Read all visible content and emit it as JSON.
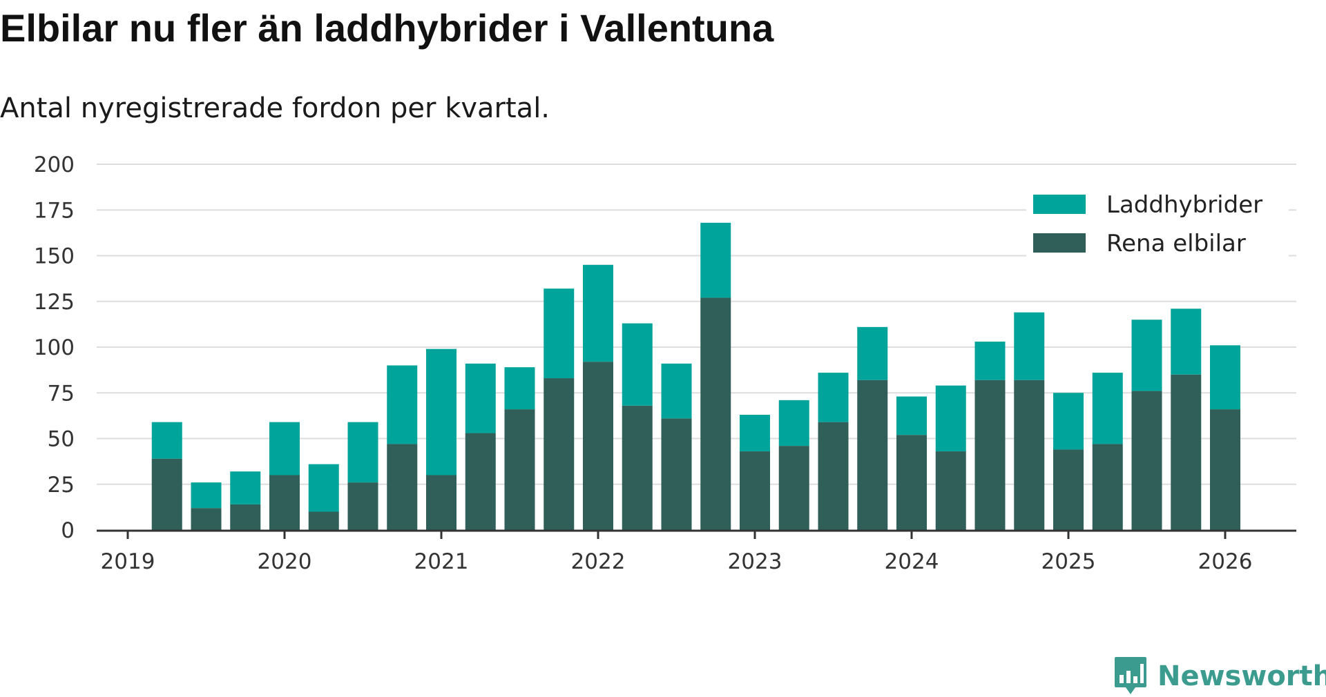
{
  "header": {
    "title": "Elbilar nu fler än laddhybrider i Vallentuna",
    "subtitle": "Antal nyregistrerade fordon per kvartal."
  },
  "colors": {
    "laddhybrider": "#00a49a",
    "rena_elbilar": "#2f5f58",
    "grid": "#dddddd",
    "axis": "#333333",
    "brand": "#3a9b8e"
  },
  "chart_data": {
    "type": "bar",
    "stacked": true,
    "title": "Elbilar nu fler än laddhybrider i Vallentuna",
    "subtitle": "Antal nyregistrerade fordon per kvartal.",
    "xlabel": "",
    "ylabel": "",
    "ylim": [
      0,
      200
    ],
    "yticks": [
      0,
      25,
      50,
      75,
      100,
      125,
      150,
      175,
      200
    ],
    "xlim": [
      2019.0,
      2026.45
    ],
    "xticks": [
      2019,
      2020,
      2021,
      2022,
      2023,
      2024,
      2025,
      2026
    ],
    "legend_position": "top-right",
    "x": [
      2019.25,
      2019.5,
      2019.75,
      2020.0,
      2020.25,
      2020.5,
      2020.75,
      2021.0,
      2021.25,
      2021.5,
      2021.75,
      2022.0,
      2022.25,
      2022.5,
      2022.75,
      2023.0,
      2023.25,
      2023.5,
      2023.75,
      2024.0,
      2024.25,
      2024.5,
      2024.75,
      2025.0,
      2025.25,
      2025.5,
      2025.75,
      2026.0
    ],
    "series": [
      {
        "name": "Rena elbilar",
        "values": [
          39,
          12,
          14,
          30,
          10,
          26,
          47,
          30,
          53,
          66,
          83,
          92,
          68,
          61,
          127,
          43,
          46,
          59,
          82,
          52,
          43,
          82,
          82,
          44,
          47,
          76,
          85,
          66
        ]
      },
      {
        "name": "Laddhybrider",
        "values": [
          20,
          14,
          18,
          29,
          26,
          33,
          43,
          69,
          38,
          23,
          49,
          53,
          45,
          30,
          41,
          20,
          25,
          27,
          29,
          21,
          36,
          21,
          37,
          31,
          39,
          39,
          36,
          35
        ]
      }
    ]
  },
  "legend": {
    "items": [
      "Laddhybrider",
      "Rena elbilar"
    ]
  },
  "brand": {
    "name": "Newsworthy",
    "icon": "newsworthy-logo-icon"
  }
}
